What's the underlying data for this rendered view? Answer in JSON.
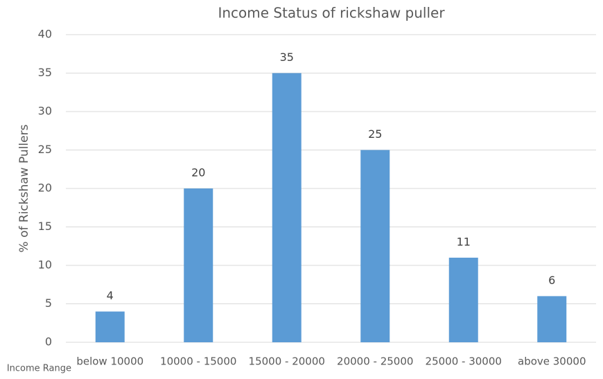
{
  "chart_data": {
    "type": "bar",
    "title": "Income Status of rickshaw puller",
    "x_label": "Income Range",
    "y_label": "% of Rickshaw Pullers",
    "categories": [
      "below 10000",
      "10000 - 15000",
      "15000 - 20000",
      "20000 - 25000",
      "25000 - 30000",
      "above 30000"
    ],
    "values": [
      4,
      20,
      35,
      25,
      11,
      6
    ],
    "color": "#5b9bd5",
    "ylim": [
      0,
      40
    ],
    "yticks": [
      0,
      5,
      10,
      15,
      20,
      25,
      30,
      35,
      40
    ],
    "grid": true
  }
}
